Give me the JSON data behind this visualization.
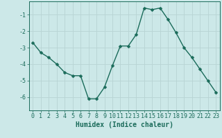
{
  "x": [
    0,
    1,
    2,
    3,
    4,
    5,
    6,
    7,
    8,
    9,
    10,
    11,
    12,
    13,
    14,
    15,
    16,
    17,
    18,
    19,
    20,
    21,
    22,
    23
  ],
  "y": [
    -2.7,
    -3.3,
    -3.6,
    -4.0,
    -4.5,
    -4.7,
    -4.7,
    -6.1,
    -6.1,
    -5.4,
    -4.1,
    -2.9,
    -2.9,
    -2.2,
    -0.6,
    -0.7,
    -0.6,
    -1.3,
    -2.1,
    -3.0,
    -3.6,
    -4.3,
    -5.0,
    -5.7
  ],
  "line_color": "#1a6b5a",
  "marker": "D",
  "marker_size": 2.5,
  "background_color": "#cce8e8",
  "grid_color_minor": "#c0dede",
  "grid_color_major": "#b8d4d4",
  "xlabel": "Humidex (Indice chaleur)",
  "xlim": [
    -0.5,
    23.5
  ],
  "ylim": [
    -6.8,
    -0.2
  ],
  "yticks": [
    -6,
    -5,
    -4,
    -3,
    -2,
    -1
  ],
  "xticks": [
    0,
    1,
    2,
    3,
    4,
    5,
    6,
    7,
    8,
    9,
    10,
    11,
    12,
    13,
    14,
    15,
    16,
    17,
    18,
    19,
    20,
    21,
    22,
    23
  ],
  "tick_color": "#1a6b5a",
  "label_fontsize": 6.0,
  "axis_fontsize": 7.0
}
